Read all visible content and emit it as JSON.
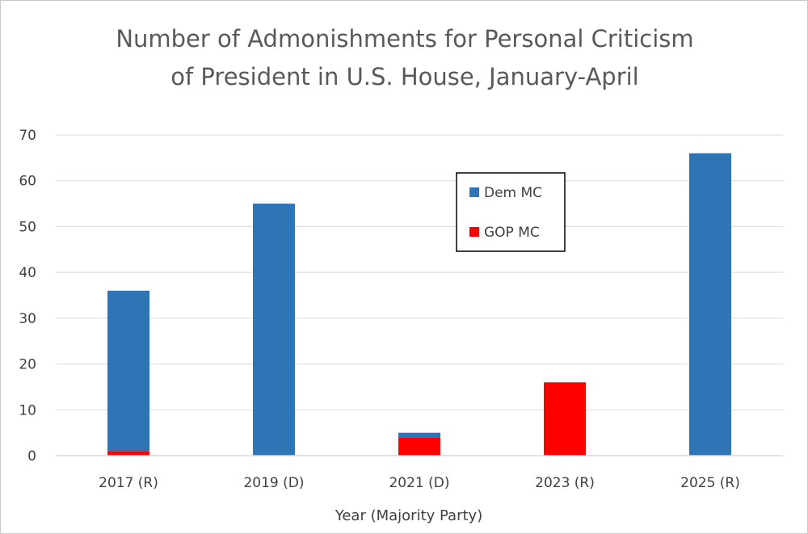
{
  "chart_data": {
    "type": "bar",
    "stacked": true,
    "title_lines": [
      "Number of Admonishments for Personal Criticism",
      "of President in U.S. House, January-April"
    ],
    "xlabel": "Year (Majority Party)",
    "ylabel": "",
    "categories": [
      "2017 (R)",
      "2019 (D)",
      "2021 (D)",
      "2023 (R)",
      "2025 (R)"
    ],
    "series": [
      {
        "name": "GOP MC",
        "color": "#ff0000",
        "values": [
          1,
          0,
          4,
          16,
          0
        ]
      },
      {
        "name": "Dem MC",
        "color": "#2e75b6",
        "values": [
          35,
          55,
          1,
          0,
          66
        ]
      }
    ],
    "legend_order": [
      "Dem MC",
      "GOP MC"
    ],
    "legend_position": "top-center",
    "ylim": [
      0,
      70
    ],
    "yticks": [
      0,
      10,
      20,
      30,
      40,
      50,
      60,
      70
    ],
    "grid": true,
    "gridline_color": "#d9d9d9"
  }
}
